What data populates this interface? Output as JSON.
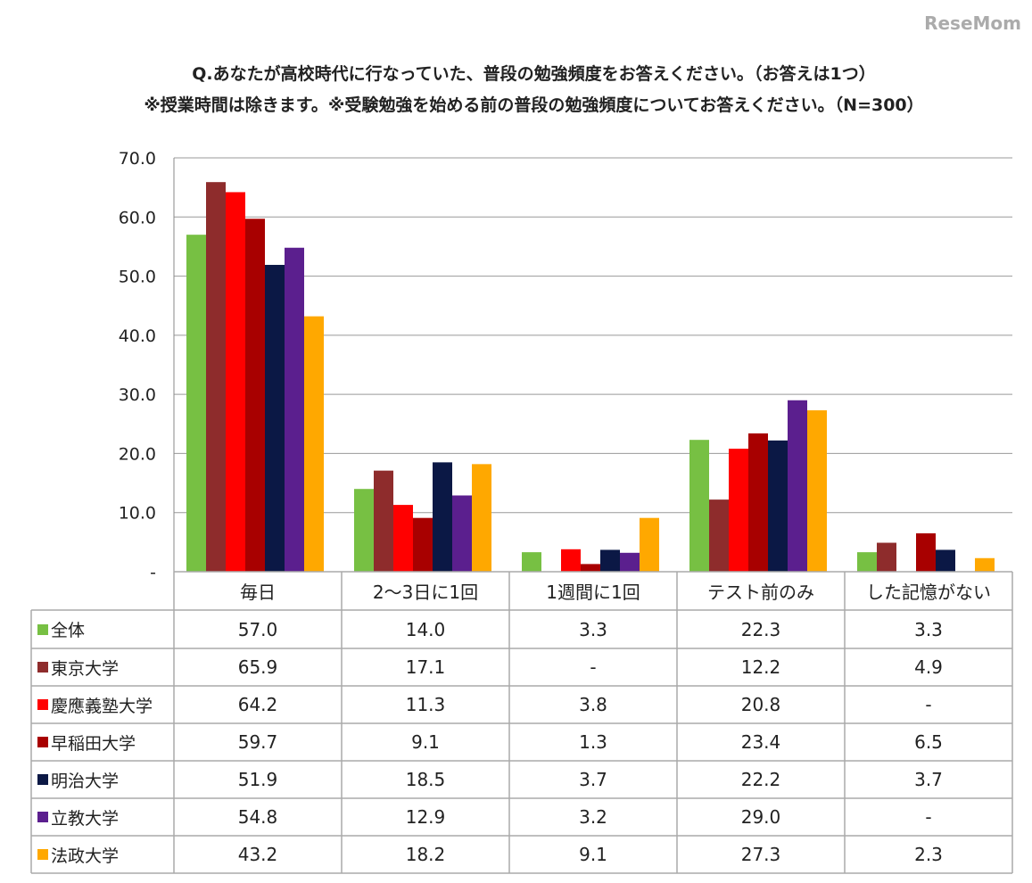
{
  "chart_data": {
    "type": "bar",
    "title": "Q.あなたが高校時代に行なっていた、普段の勉強頻度をお答えください。（お答えは1つ）",
    "subtitle": "※授業時間は除きます。※受験勉強を始める前の普段の勉強頻度についてお答えください。（N=300）",
    "categories": [
      "毎日",
      "2～3日に1回",
      "1週間に1回",
      "テスト前のみ",
      "した記憶がない"
    ],
    "ylim": [
      0,
      70
    ],
    "yticks": [
      "-",
      "10.0",
      "20.0",
      "30.0",
      "40.0",
      "50.0",
      "60.0",
      "70.0"
    ],
    "grid": true,
    "legend": "table-left",
    "series": [
      {
        "name": "全体",
        "color": "#77c043",
        "values": [
          57.0,
          14.0,
          3.3,
          22.3,
          3.3
        ],
        "labels": [
          "57.0",
          "14.0",
          "3.3",
          "22.3",
          "3.3"
        ]
      },
      {
        "name": "東京大学",
        "color": "#8e2c2c",
        "values": [
          65.9,
          17.1,
          null,
          12.2,
          4.9
        ],
        "labels": [
          "65.9",
          "17.1",
          "-",
          "12.2",
          "4.9"
        ]
      },
      {
        "name": "慶應義塾大学",
        "color": "#ff0000",
        "values": [
          64.2,
          11.3,
          3.8,
          20.8,
          null
        ],
        "labels": [
          "64.2",
          "11.3",
          "3.8",
          "20.8",
          "-"
        ]
      },
      {
        "name": "早稲田大学",
        "color": "#a80000",
        "values": [
          59.7,
          9.1,
          1.3,
          23.4,
          6.5
        ],
        "labels": [
          "59.7",
          "9.1",
          "1.3",
          "23.4",
          "6.5"
        ]
      },
      {
        "name": "明治大学",
        "color": "#0b1845",
        "values": [
          51.9,
          18.5,
          3.7,
          22.2,
          3.7
        ],
        "labels": [
          "51.9",
          "18.5",
          "3.7",
          "22.2",
          "3.7"
        ]
      },
      {
        "name": "立教大学",
        "color": "#5b1f8e",
        "values": [
          54.8,
          12.9,
          3.2,
          29.0,
          null
        ],
        "labels": [
          "54.8",
          "12.9",
          "3.2",
          "29.0",
          "-"
        ]
      },
      {
        "name": "法政大学",
        "color": "#ffa800",
        "values": [
          43.2,
          18.2,
          9.1,
          27.3,
          2.3
        ],
        "labels": [
          "43.2",
          "18.2",
          "9.1",
          "27.3",
          "2.3"
        ]
      }
    ]
  },
  "watermark": "ReseMom"
}
